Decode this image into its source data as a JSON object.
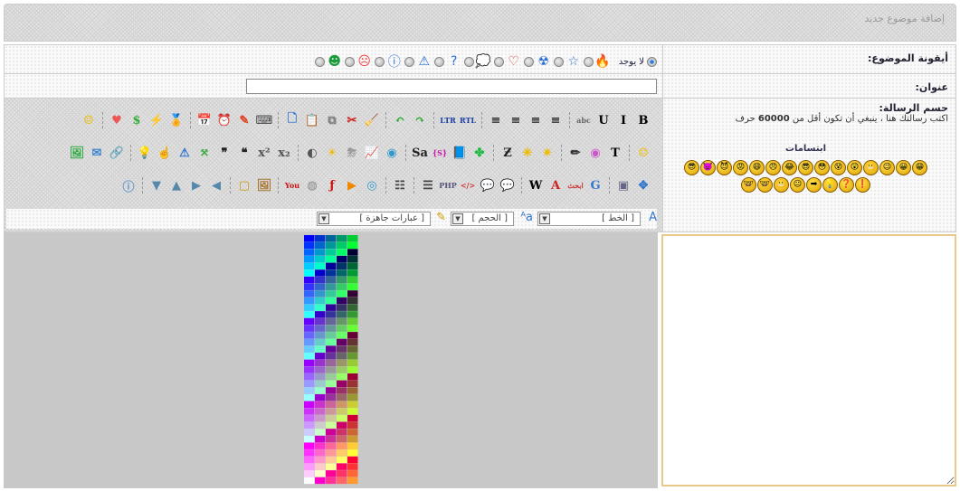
{
  "header": {
    "title": "إضافة موضوع جديد"
  },
  "topic_icon": {
    "label": "أيقونة الموضوع:",
    "none_label": "لا يوجد",
    "icons": [
      {
        "name": "fire",
        "glyph": "🔥",
        "color": "#e55"
      },
      {
        "name": "star",
        "glyph": "☆",
        "color": "#2a6fd0"
      },
      {
        "name": "radiation",
        "glyph": "☢",
        "color": "#2a6fd0"
      },
      {
        "name": "heart",
        "glyph": "♡",
        "color": "#d33"
      },
      {
        "name": "speech",
        "glyph": "💭",
        "color": "#2a6fd0"
      },
      {
        "name": "question",
        "glyph": "?",
        "color": "#2a6fd0"
      },
      {
        "name": "warning",
        "glyph": "⚠",
        "color": "#2a6fd0"
      },
      {
        "name": "info",
        "glyph": "ⓘ",
        "color": "#2a6fd0"
      },
      {
        "name": "sad-face",
        "glyph": "☹",
        "color": "#e44"
      },
      {
        "name": "grin-green",
        "glyph": "☻",
        "color": "#1a9a3a"
      }
    ]
  },
  "title_field": {
    "label": "عنوان:",
    "value": ""
  },
  "message": {
    "label": "حسم الرسالة:",
    "hint": "اكتب رسالتك هنا ، ينبغي أن تكون أقل من",
    "limit": "60000",
    "unit": "حرف",
    "value": ""
  },
  "smilies": {
    "title": "ابتسامات",
    "row1": [
      "😁",
      "😀",
      "😉",
      "😬",
      "😲",
      "😵",
      "😳",
      "😎",
      "😂",
      "😠",
      "😄",
      "😡",
      "😈",
      "👿",
      "😎"
    ],
    "row2": [
      "❗",
      "❓",
      "💡",
      "➡",
      "😐",
      "😬",
      "🤓",
      "🤓"
    ]
  },
  "toolbar": {
    "row1": [
      [
        "bold",
        "B",
        "#000"
      ],
      [
        "italic",
        "I",
        "#000"
      ],
      [
        "underline",
        "U",
        "#000"
      ],
      [
        "strikethrough",
        "abc",
        "#666"
      ],
      "|",
      [
        "align-right",
        "≡",
        "#333"
      ],
      [
        "align-center",
        "≡",
        "#333"
      ],
      [
        "align-left",
        "≡",
        "#333"
      ],
      [
        "justify",
        "≡",
        "#333"
      ],
      "|",
      [
        "rtl",
        "RTL",
        "#1a3fa0"
      ],
      [
        "ltr",
        "LTR",
        "#1a3fa0"
      ],
      "|",
      [
        "redo",
        "↷",
        "#3a3"
      ],
      [
        "undo",
        "↶",
        "#3a3"
      ],
      "|",
      [
        "clean",
        "🧹",
        "#c90"
      ],
      [
        "cut",
        "✂",
        "#c22"
      ],
      [
        "copy",
        "⧉",
        "#777"
      ],
      [
        "paste",
        "📋",
        "#864"
      ],
      [
        "new-doc",
        "🗋",
        "#37c"
      ],
      "|",
      [
        "keyboard",
        "⌨",
        "#444"
      ],
      [
        "marker",
        "✎",
        "#d42"
      ],
      [
        "clock",
        "⏰",
        "#39d"
      ],
      [
        "date",
        "📅",
        "#c22"
      ],
      "|",
      [
        "award",
        "🏅",
        "#d11"
      ],
      [
        "flash",
        "⚡",
        "#eb0"
      ],
      [
        "dollar",
        "$",
        "#3a3"
      ],
      [
        "heart",
        "♥",
        "#e55"
      ],
      "|",
      [
        "smiley",
        "☺",
        "#eb0"
      ]
    ],
    "row2": [
      [
        "smiley-big",
        "☺",
        "#eb0"
      ],
      "|",
      [
        "text-color",
        "T",
        "#000"
      ],
      [
        "color-wheel",
        "◉",
        "#c5c"
      ],
      [
        "highlight",
        "✏",
        "#333"
      ],
      "|",
      [
        "sparkle-small",
        "✴",
        "#eb0"
      ],
      [
        "sparkle",
        "✳",
        "#eb0"
      ],
      [
        "zigzag",
        "Ƶ",
        "#222"
      ],
      "|",
      [
        "clover",
        "✤",
        "#2b4"
      ],
      [
        "book",
        "📘",
        "#37a"
      ],
      [
        "spoiler",
        "{S}",
        "#c1a"
      ],
      [
        "sa-font",
        "Sa",
        "#222"
      ],
      "|",
      [
        "eye",
        "◉",
        "#39c"
      ],
      [
        "chart",
        "📈",
        "#c3a"
      ],
      [
        "storm",
        "⛈",
        "#999"
      ],
      [
        "sun",
        "☀",
        "#eb0"
      ],
      [
        "moon",
        "◐",
        "#555"
      ],
      "|",
      [
        "subscript",
        "x₂",
        "#555"
      ],
      [
        "superscript",
        "x²",
        "#555"
      ],
      [
        "quote-open",
        "❝",
        "#222"
      ],
      [
        "quote-close",
        "❞",
        "#222"
      ],
      [
        "resize",
        "⤧",
        "#3a3"
      ],
      [
        "report",
        "⚠",
        "#37c"
      ],
      [
        "hand",
        "☝",
        "#a84"
      ],
      [
        "bulb",
        "💡",
        "#9bd"
      ],
      "|",
      [
        "link",
        "🔗",
        "#668"
      ],
      [
        "email",
        "✉",
        "#48c"
      ],
      [
        "image",
        "🖼",
        "#3a4"
      ]
    ],
    "row3": [
      [
        "expand",
        "✥",
        "#37c"
      ],
      [
        "gallery",
        "▣",
        "#668"
      ],
      "|",
      [
        "google",
        "G",
        "#37c"
      ],
      [
        "arabic",
        "ابحث",
        "#c33"
      ],
      [
        "adobe",
        "A",
        "#c22"
      ],
      [
        "wikipedia",
        "W",
        "#000"
      ],
      "|",
      [
        "comment-blue",
        "💬",
        "#6ad"
      ],
      [
        "comment-yellow",
        "💬",
        "#eb0"
      ],
      [
        "html",
        "</>",
        "#c33"
      ],
      [
        "php",
        "PHP",
        "#557"
      ],
      [
        "list",
        "☰",
        "#444"
      ],
      "|",
      [
        "checklist",
        "☷",
        "#444"
      ],
      "|",
      [
        "quicktime",
        "◎",
        "#39c"
      ],
      [
        "realplayer",
        "▶",
        "#e80"
      ],
      [
        "flash-player",
        "ƒ",
        "#c11"
      ],
      [
        "media",
        "◍",
        "#888"
      ],
      [
        "youtube",
        "You",
        "#c11"
      ],
      "|",
      [
        "picture",
        "🖼",
        "#a73"
      ],
      [
        "frame",
        "▢",
        "#c90"
      ],
      "|",
      [
        "arrow-left",
        "◀",
        "#58a"
      ],
      [
        "arrow-right",
        "▶",
        "#58a"
      ],
      [
        "arrow-up",
        "▲",
        "#58a"
      ],
      [
        "arrow-down",
        "▼",
        "#58a"
      ],
      "|",
      [
        "info-circle",
        "ⓘ",
        "#69c"
      ]
    ],
    "font_select": "[ الخط ]",
    "size_select": "[ الحجم ]",
    "phrases_select": "[ عبارات جاهزة ]"
  },
  "colors": {
    "textarea_border": "#e8c98a",
    "panel_bg": "#c8c8c8"
  }
}
